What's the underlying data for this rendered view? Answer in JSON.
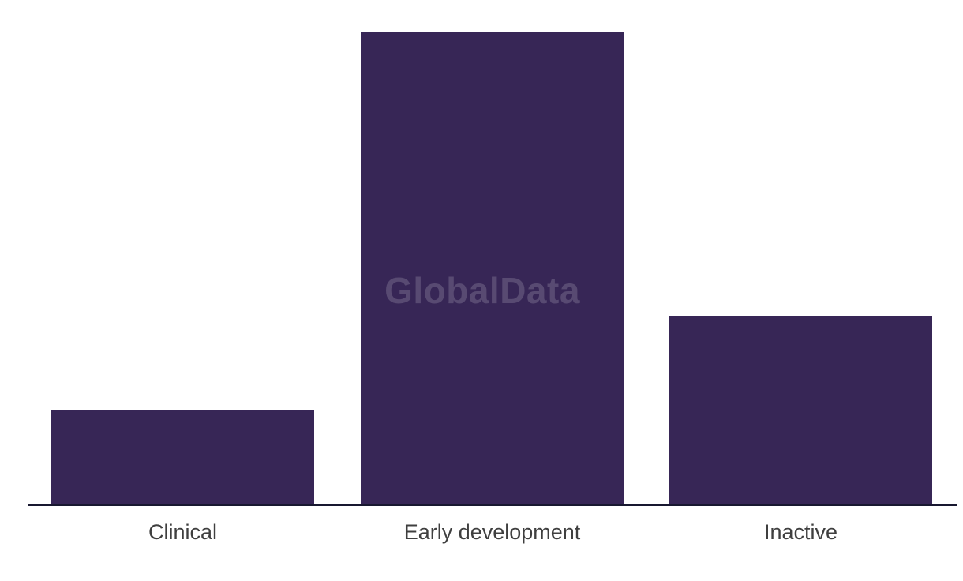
{
  "watermark": {
    "text": "GlobalData"
  },
  "colors": {
    "background": "#ffffff",
    "bar": "#372656",
    "axis": "#181830",
    "label": "#3f3f3f",
    "watermark": "rgba(255,255,255,0.17)"
  },
  "chart_data": {
    "type": "bar",
    "categories": [
      "Clinical",
      "Early development",
      "Inactive"
    ],
    "values": [
      20,
      100,
      40
    ],
    "title": "",
    "xlabel": "",
    "ylabel": "",
    "ylim": [
      0,
      100
    ],
    "y_axis_shown": false,
    "grid": false,
    "legend": false,
    "value_note": "No y-axis or data labels shown; values are relative estimates from bar heights with tallest bar = 100"
  }
}
